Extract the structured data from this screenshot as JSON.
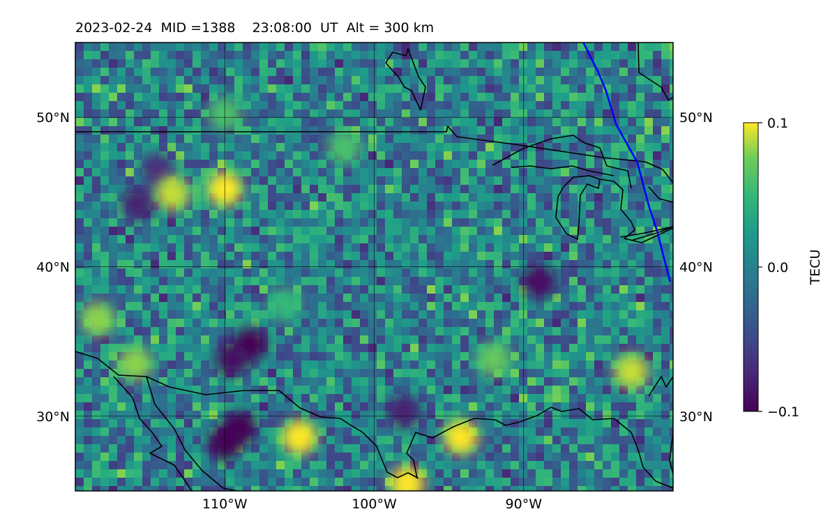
{
  "title": "2023-02-24  MID =1388    23:08:00  UT  Alt = 300 km",
  "map": {
    "lon_range": [
      -120,
      -80
    ],
    "lat_range": [
      25,
      55
    ],
    "lon_ticks": [
      {
        "value": -110,
        "label": "110°W"
      },
      {
        "value": -100,
        "label": "100°W"
      },
      {
        "value": -90,
        "label": "90°W"
      }
    ],
    "lat_ticks": [
      {
        "value": 30,
        "label": "30°N"
      },
      {
        "value": 40,
        "label": "40°N"
      },
      {
        "value": 50,
        "label": "50°N"
      }
    ],
    "gridlines": true,
    "terminator_color": "#0000ff",
    "coastline_color": "#000000",
    "terminator_line": [
      [
        -86.0,
        55.0
      ],
      [
        -85.0,
        53.0
      ],
      [
        -84.5,
        51.8
      ],
      [
        -83.8,
        49.5
      ],
      [
        -82.4,
        47.0
      ],
      [
        -81.6,
        44.0
      ],
      [
        -81.1,
        42.5
      ],
      [
        -80.2,
        39.0
      ]
    ]
  },
  "colorbar": {
    "label": "TECU",
    "min": -0.1,
    "max": 0.1,
    "ticks": [
      {
        "value": 0.1,
        "label": "0.1"
      },
      {
        "value": 0.0,
        "label": "0.0"
      },
      {
        "value": -0.1,
        "label": "−0.1"
      }
    ],
    "colormap": "viridis"
  },
  "chart_data": {
    "type": "heatmap",
    "title": "2023-02-24  MID =1388    23:08:00  UT  Alt = 300 km",
    "variable": "TECU",
    "value_range": [
      -0.1,
      0.1
    ],
    "hotspots": [
      {
        "lon": -110.0,
        "lat": 28.2,
        "value": -0.1
      },
      {
        "lon": -109.0,
        "lat": 29.2,
        "value": -0.1
      },
      {
        "lon": -108.3,
        "lat": 34.8,
        "value": -0.1
      },
      {
        "lon": -109.5,
        "lat": 33.8,
        "value": -0.09
      },
      {
        "lon": -89.0,
        "lat": 39.0,
        "value": -0.09
      },
      {
        "lon": -115.8,
        "lat": 44.2,
        "value": -0.08
      },
      {
        "lon": -114.5,
        "lat": 46.5,
        "value": -0.07
      },
      {
        "lon": -98.0,
        "lat": 30.3,
        "value": -0.08
      },
      {
        "lon": -94.2,
        "lat": 28.6,
        "value": 0.1
      },
      {
        "lon": -105.0,
        "lat": 28.6,
        "value": 0.1
      },
      {
        "lon": -97.8,
        "lat": 25.5,
        "value": 0.1
      },
      {
        "lon": -110.0,
        "lat": 45.2,
        "value": 0.1
      },
      {
        "lon": -110.0,
        "lat": 50.2,
        "value": 0.06
      },
      {
        "lon": -118.5,
        "lat": 36.5,
        "value": 0.08
      },
      {
        "lon": -116.0,
        "lat": 33.5,
        "value": 0.08
      },
      {
        "lon": -113.5,
        "lat": 44.9,
        "value": 0.09
      },
      {
        "lon": -82.8,
        "lat": 33.0,
        "value": 0.09
      },
      {
        "lon": -92.0,
        "lat": 33.8,
        "value": 0.07
      },
      {
        "lon": -102.0,
        "lat": 48.0,
        "value": 0.06
      },
      {
        "lon": -106.0,
        "lat": 37.5,
        "value": 0.05
      }
    ]
  }
}
